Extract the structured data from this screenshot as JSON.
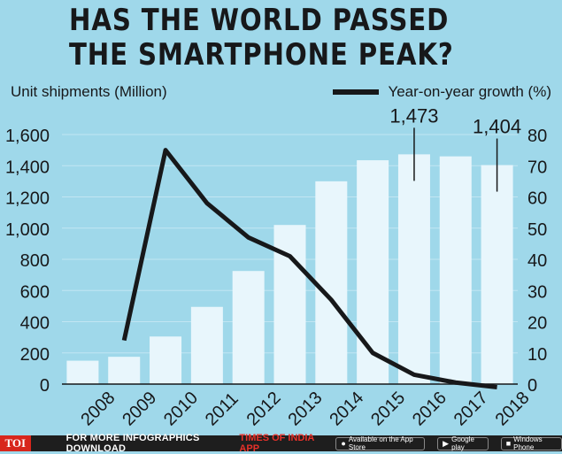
{
  "header": {
    "title": "HAS THE WORLD PASSED THE SMARTPHONE PEAK?",
    "left_axis_label": "Unit shipments (Million)",
    "legend_label": "Year-on-year growth (%)"
  },
  "footer": {
    "brand_badge": "TOI",
    "text": "FOR MORE INFOGRAPHICS DOWNLOAD",
    "brand_text": "TIMES OF INDIA APP",
    "store_badges": [
      "Available on the App Store",
      "Google play",
      "Windows Phone"
    ],
    "store_icons": [
      "apple-icon",
      "play-store-icon",
      "windows-icon"
    ]
  },
  "chart_data": {
    "type": "bar",
    "title": "HAS THE WORLD PASSED THE SMARTPHONE PEAK?",
    "categories": [
      "2008",
      "2009",
      "2010",
      "2011",
      "2012",
      "2013",
      "2014",
      "2015",
      "2016",
      "2017",
      "2018"
    ],
    "series": [
      {
        "name": "Unit shipments (Million)",
        "type": "bar",
        "axis": "left",
        "values": [
          150,
          175,
          305,
          495,
          725,
          1020,
          1300,
          1435,
          1473,
          1460,
          1404
        ]
      },
      {
        "name": "Year-on-year growth (%)",
        "type": "line",
        "axis": "right",
        "values": [
          null,
          14,
          75,
          58,
          47,
          41,
          27,
          10,
          3,
          0.5,
          -1
        ]
      }
    ],
    "data_labels": [
      {
        "category": "2016",
        "text": "1,473"
      },
      {
        "category": "2018",
        "text": "1,404"
      }
    ],
    "ylabel": "Unit shipments (Million)",
    "y2label": "Year-on-year growth (%)",
    "ylim": [
      0,
      1600
    ],
    "y2lim": [
      0,
      80
    ],
    "yticks": [
      "0",
      "200",
      "400",
      "600",
      "800",
      "1,000",
      "1,200",
      "1,400",
      "1,600"
    ],
    "y2ticks": [
      "0",
      "10",
      "20",
      "30",
      "40",
      "50",
      "60",
      "70",
      "80"
    ],
    "grid": true,
    "legend_position": "top-right",
    "colors": {
      "background": "#9fd8ea",
      "bar": "#e8f6fc",
      "line": "#17181a",
      "grid": "#c2e6f3"
    }
  }
}
